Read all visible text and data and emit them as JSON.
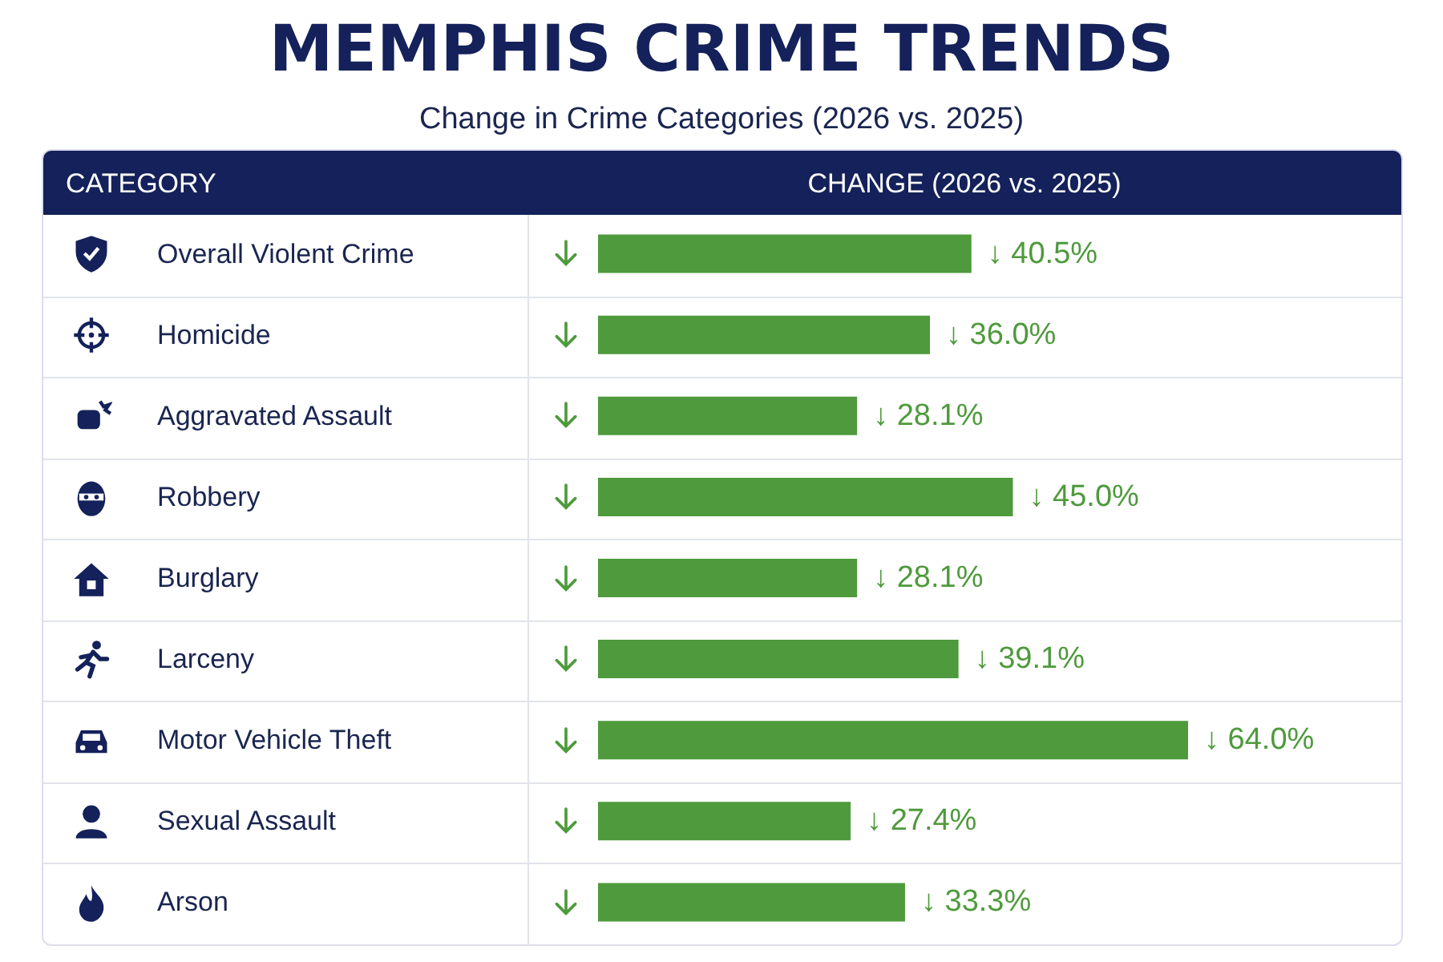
{
  "chart_data": {
    "type": "bar",
    "orientation": "horizontal",
    "title": "MEMPHIS CRIME TRENDS",
    "subtitle": "Change in Crime Categories (2026 vs. 2025)",
    "ylabel": "CATEGORY",
    "xlabel": "CHANGE (2026 vs. 2025)",
    "categories": [
      "Overall Violent Crime",
      "Homicide",
      "Aggravated Assault",
      "Robbery",
      "Burglary",
      "Larceny",
      "Motor Vehicle Theft",
      "Sexual Assault",
      "Arson"
    ],
    "values": [
      40.5,
      36.0,
      28.1,
      45.0,
      28.1,
      39.1,
      64.0,
      27.4,
      33.3
    ],
    "value_labels": [
      "↓ 40.5%",
      "↓ 36.0%",
      "↓ 28.1%",
      "↓ 45.0%",
      "↓ 28.1%",
      "↓ 39.1%",
      "↓ 64.0%",
      "↓ 27.4%",
      "↓ 33.3%"
    ],
    "color": "#4e9a3c"
  }
}
